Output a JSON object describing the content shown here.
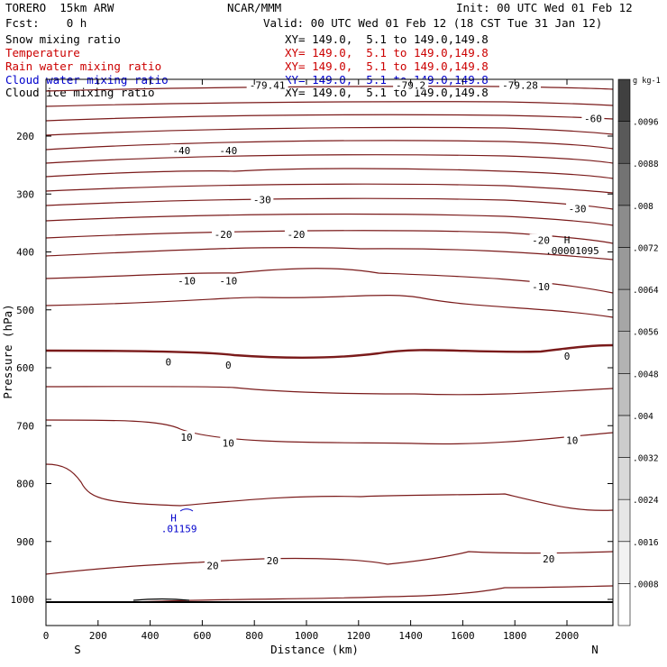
{
  "header": {
    "model": "TORERO  15km ARW",
    "center": "NCAR/MMM",
    "init": "Init: 00 UTC Wed 01 Feb 12",
    "fcst": "Fcst:    0 h",
    "valid": "Valid: 00 UTC Wed 01 Feb 12 (18 CST Tue 31 Jan 12)"
  },
  "fields": [
    {
      "name": "Snow mixing ratio",
      "xy": "XY= 149.0,  5.1 to 149.0,149.8",
      "color": "#000000"
    },
    {
      "name": "Temperature",
      "xy": "XY= 149.0,  5.1 to 149.0,149.8",
      "color": "#cc0000"
    },
    {
      "name": "Rain water mixing ratio",
      "xy": "XY= 149.0,  5.1 to 149.0,149.8",
      "color": "#cc0000"
    },
    {
      "name": "Cloud water mixing ratio",
      "xy": "XY= 149.0,  5.1 to 149.0,149.8",
      "color": "#0000cc"
    },
    {
      "name": "Cloud ice mixing ratio",
      "xy": "XY= 149.0,  5.1 to 149.0,149.8",
      "color": "#000000"
    }
  ],
  "chart_data": {
    "type": "contour",
    "title": "",
    "xlabel": "Distance (km)",
    "ylabel": "Pressure (hPa)",
    "xlim": [
      0,
      2180
    ],
    "ylim": [
      1050,
      100
    ],
    "x_ticks": [
      0,
      200,
      400,
      600,
      800,
      1000,
      1200,
      1400,
      1600,
      1800,
      2000
    ],
    "y_ticks": [
      200,
      300,
      400,
      500,
      600,
      700,
      800,
      900,
      1000
    ],
    "x_end_labels": {
      "left": "S",
      "right": "N"
    },
    "contour_color": "#7a1a1a",
    "temperature_contour_labels": [
      {
        "text": "-79.41",
        "x": 850,
        "p": 112
      },
      {
        "text": "-79.2",
        "x": 1400,
        "p": 112
      },
      {
        "text": "-79.28",
        "x": 1820,
        "p": 112
      },
      {
        "text": "-60",
        "x": 2100,
        "p": 170
      },
      {
        "text": "-40",
        "x": 520,
        "p": 225
      },
      {
        "text": "-40",
        "x": 700,
        "p": 225
      },
      {
        "text": "-30",
        "x": 830,
        "p": 310
      },
      {
        "text": "-30",
        "x": 2040,
        "p": 325
      },
      {
        "text": "-20",
        "x": 680,
        "p": 370
      },
      {
        "text": "-20",
        "x": 960,
        "p": 370
      },
      {
        "text": "-20",
        "x": 1900,
        "p": 380
      },
      {
        "text": "-10",
        "x": 540,
        "p": 450
      },
      {
        "text": "-10",
        "x": 700,
        "p": 450
      },
      {
        "text": "-10",
        "x": 1900,
        "p": 460
      },
      {
        "text": "0",
        "x": 470,
        "p": 590
      },
      {
        "text": "0",
        "x": 700,
        "p": 595
      },
      {
        "text": "0",
        "x": 2000,
        "p": 580
      },
      {
        "text": "10",
        "x": 540,
        "p": 720
      },
      {
        "text": "10",
        "x": 700,
        "p": 730
      },
      {
        "text": "10",
        "x": 2020,
        "p": 725
      },
      {
        "text": "20",
        "x": 640,
        "p": 942
      },
      {
        "text": "20",
        "x": 870,
        "p": 933
      },
      {
        "text": "20",
        "x": 1930,
        "p": 930
      }
    ],
    "maxima": [
      {
        "label": "H",
        "value": ".00001095",
        "x": 2000,
        "p": 385,
        "color": "#000000"
      },
      {
        "label": "H",
        "value": ".01159",
        "x": 490,
        "p": 865,
        "color": "#0000cc"
      }
    ],
    "colorbar": {
      "unit": "g kg-1",
      "levels": [
        ".0008",
        ".0016",
        ".0024",
        ".0032",
        ".004",
        ".0048",
        ".0056",
        ".0064",
        ".0072",
        ".008",
        ".0088",
        ".0096"
      ],
      "colors": [
        "#ffffff",
        "#f2f2f2",
        "#e6e6e6",
        "#d9d9d9",
        "#cccccc",
        "#bfbfbf",
        "#b3b3b3",
        "#a6a6a6",
        "#999999",
        "#8c8c8c",
        "#737373",
        "#595959",
        "#404040"
      ]
    }
  }
}
